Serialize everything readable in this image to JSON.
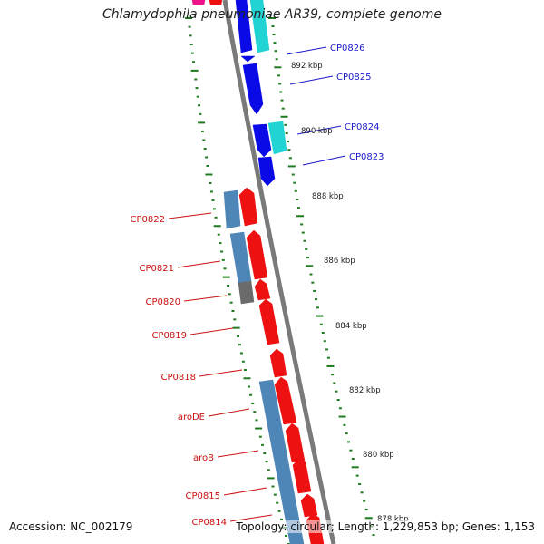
{
  "title": "Chlamydophila pneumoniae AR39, complete genome",
  "footer": {
    "accession": "Accession: NC_002179",
    "summary": "Topology: circular; Length: 1,229,853 bp; Genes: 1,153"
  },
  "colors": {
    "forward_gene": "#0a0ae6",
    "forward_feature": "#22d3d3",
    "reverse_gene": "#ee1111",
    "reverse_feature": "#4f86b8",
    "pseudo_feature": "#6b6b6b",
    "backbone": "#7a7a7a",
    "tick": "#1f7a1f",
    "forward_label": "#1a1acc",
    "reverse_label": "#cc1111"
  },
  "scale_labels": [
    "892 kbp",
    "890 kbp",
    "888 kbp",
    "886 kbp",
    "884 kbp",
    "882 kbp",
    "880 kbp",
    "878 kbp"
  ],
  "forward_labels": [
    "CP0826",
    "CP0825",
    "CP0824",
    "CP0823"
  ],
  "reverse_labels": [
    "CP0822",
    "CP0821",
    "CP0820",
    "CP0819",
    "CP0818",
    "aroDE",
    "aroB",
    "CP0815",
    "CP0814"
  ]
}
